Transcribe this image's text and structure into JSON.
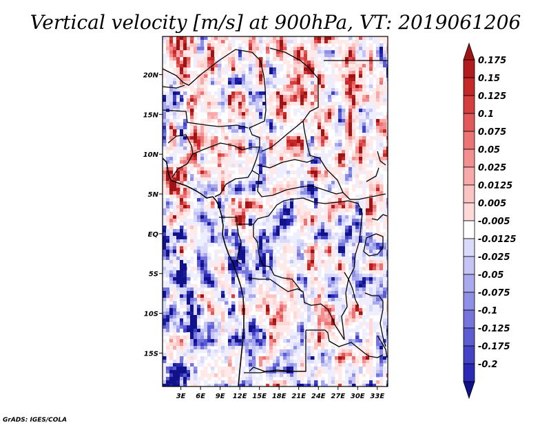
{
  "title": "Vertical velocity [m/s] at 900hPa, VT: 2019061206",
  "footer": "GrADS: IGES/COLA",
  "colors": {
    "zero_band": "#ffffff",
    "positive_ramp": [
      "#ffe9e9",
      "#ffd8d8",
      "#fcc3c3",
      "#f8aaaa",
      "#f38f8f",
      "#ec7474",
      "#e35858",
      "#d63e3e",
      "#c62828",
      "#b31c1c",
      "#9e1414"
    ],
    "negative_ramp": [
      "#eeeefe",
      "#dadafa",
      "#c5c5f5",
      "#a9a9ef",
      "#8f8fe6",
      "#7575dd",
      "#5c5cd3",
      "#4343c6",
      "#2a2ab6",
      "#1c1ca3",
      "#11118a"
    ]
  },
  "chart_data": {
    "type": "heatmap",
    "variable": "Vertical velocity",
    "units": "m/s",
    "level": "900hPa",
    "valid_time": "2019061206",
    "x_ticks": [
      "3E",
      "6E",
      "9E",
      "12E",
      "15E",
      "18E",
      "21E",
      "24E",
      "27E",
      "30E",
      "33E"
    ],
    "x_tick_values": [
      3,
      6,
      9,
      12,
      15,
      18,
      21,
      24,
      27,
      30,
      33
    ],
    "y_ticks": [
      "20N",
      "15N",
      "10N",
      "5N",
      "EQ",
      "5S",
      "10S",
      "15S"
    ],
    "y_tick_values": [
      20,
      15,
      10,
      5,
      0,
      -5,
      -10,
      -15
    ],
    "xlim": [
      0.2,
      34.6
    ],
    "ylim": [
      -19.2,
      24.8
    ],
    "colorbar_levels": [
      "0.175",
      "0.15",
      "0.125",
      "0.1",
      "0.075",
      "0.05",
      "0.025",
      "0.0125",
      "0.005",
      "-0.005",
      "-0.0125",
      "-0.025",
      "-0.05",
      "-0.075",
      "-0.1",
      "-0.125",
      "-0.175",
      "-0.2"
    ],
    "colorbar_level_values": [
      0.175,
      0.15,
      0.125,
      0.1,
      0.075,
      0.05,
      0.025,
      0.0125,
      0.005,
      -0.005,
      -0.0125,
      -0.025,
      -0.05,
      -0.075,
      -0.1,
      -0.125,
      -0.175,
      -0.2
    ],
    "colorbar_colors": [
      "#a01414",
      "#b31c1c",
      "#c62828",
      "#d63e3e",
      "#e35858",
      "#ec7474",
      "#f38f8f",
      "#f8aaaa",
      "#fcc3c3",
      "#ffd8d8",
      "#ffffff",
      "#dadafa",
      "#c5c5f5",
      "#a9a9ef",
      "#8f8fe6",
      "#7575dd",
      "#5c5cd3",
      "#4343c6",
      "#2a2ab6",
      "#11118a"
    ]
  }
}
